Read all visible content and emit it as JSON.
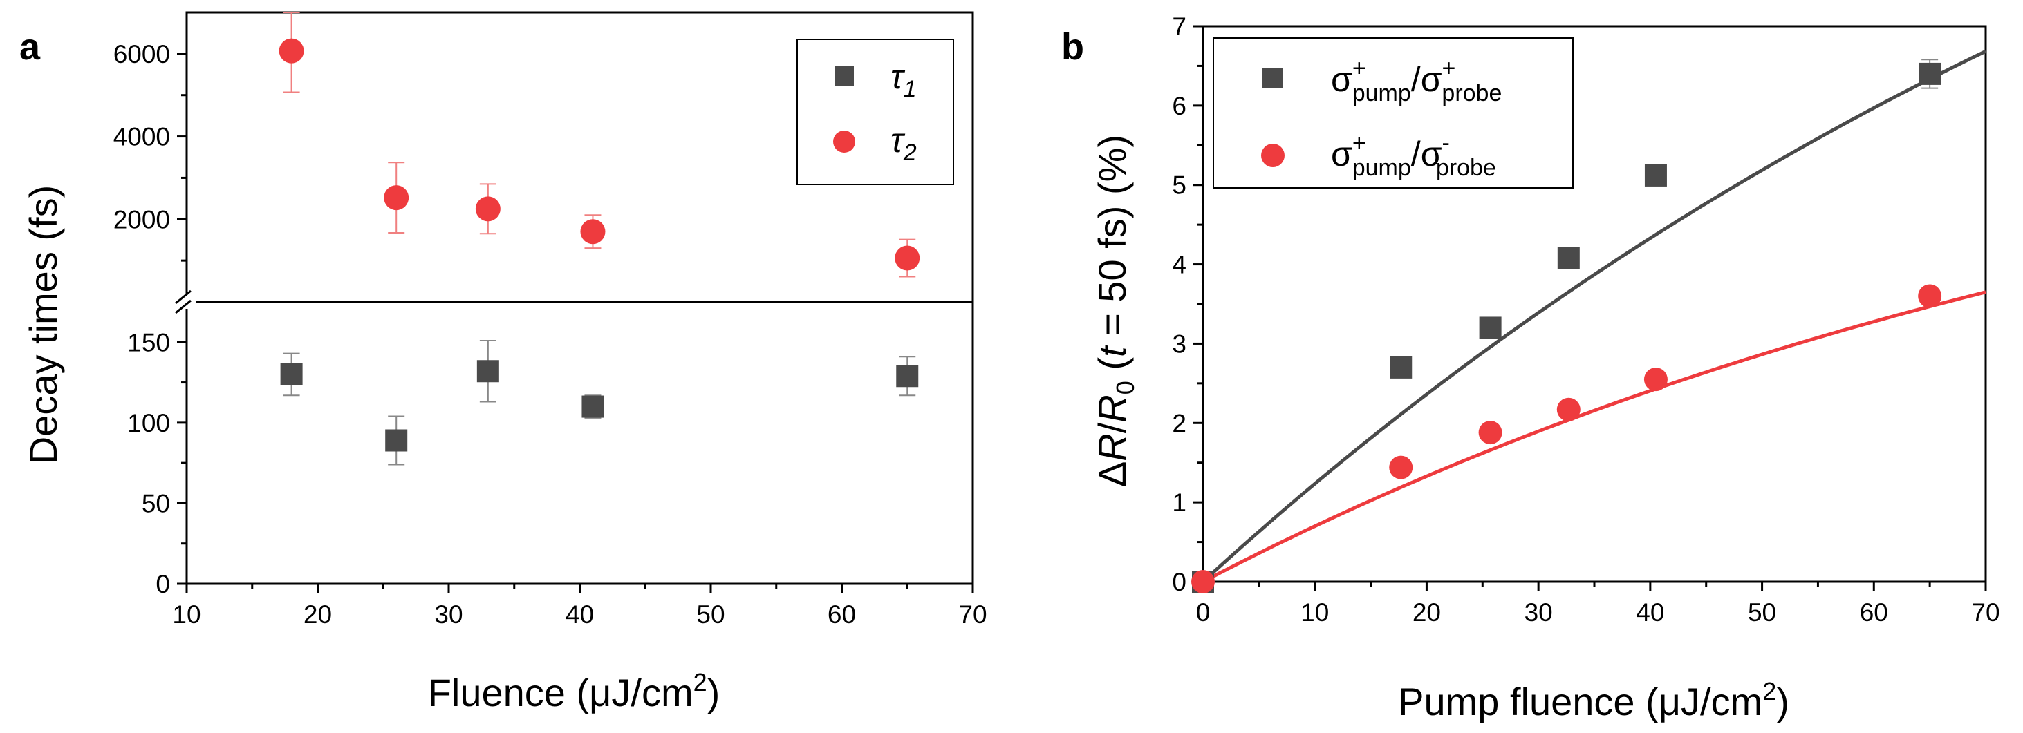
{
  "colors": {
    "series_gray": "#4a4a4a",
    "series_red": "#ee3b3e",
    "errorbar_gray": "#888888",
    "errorbar_red": "#f08080"
  },
  "panels": {
    "a": {
      "label": "a"
    },
    "b": {
      "label": "b"
    }
  },
  "chart_data": [
    {
      "panel": "a",
      "type": "scatter",
      "title": "",
      "xlabel_main": "Fluence (μJ/cm",
      "xlabel_sup": "2",
      "xlabel_close": ")",
      "ylabel": "Decay times (fs)",
      "xlim": [
        10,
        70
      ],
      "x_ticks": [
        "10",
        "20",
        "30",
        "40",
        "50",
        "60",
        "70"
      ],
      "broken_y_axis": true,
      "ylim_lower": [
        0,
        175
      ],
      "ylim_upper": [
        0,
        7000
      ],
      "y_ticks_lower": [
        "0",
        "50",
        "100",
        "150"
      ],
      "y_ticks_upper": [
        "2000",
        "4000",
        "6000"
      ],
      "legend_position": "top-right",
      "series": [
        {
          "name": "τ1",
          "legend_base": "τ",
          "legend_sub": "1",
          "marker": "square",
          "color": "#4a4a4a",
          "segment": "lower",
          "x": [
            18,
            26,
            33,
            41,
            65
          ],
          "y": [
            130,
            89,
            132,
            110,
            129
          ],
          "yerr": [
            13,
            15,
            19,
            7,
            12
          ]
        },
        {
          "name": "τ2",
          "legend_base": "τ",
          "legend_sub": "2",
          "marker": "circle",
          "color": "#ee3b3e",
          "segment": "upper",
          "x": [
            18,
            26,
            33,
            41,
            65
          ],
          "y": [
            6070,
            2520,
            2250,
            1700,
            1060
          ],
          "yerr": [
            1000,
            850,
            600,
            400,
            450
          ]
        }
      ]
    },
    {
      "panel": "b",
      "type": "scatter",
      "title": "",
      "xlabel_main": "Pump fluence (μJ/cm",
      "xlabel_sup": "2",
      "xlabel_close": ")",
      "ylabel_parts": [
        "Δ",
        "R",
        "/",
        "R",
        "0",
        " (",
        "t",
        " = 50 fs) (%)"
      ],
      "xlim": [
        0,
        70
      ],
      "ylim": [
        0,
        7
      ],
      "x_ticks": [
        "0",
        "10",
        "20",
        "30",
        "40",
        "50",
        "60",
        "70"
      ],
      "y_ticks": [
        "0",
        "1",
        "2",
        "3",
        "4",
        "5",
        "6",
        "7"
      ],
      "legend_position": "top-left",
      "series": [
        {
          "name": "σ+pump/σ+probe",
          "legend_parts": {
            "sigma": "σ",
            "sup1": "+",
            "sub1": "pump",
            "slash": "/",
            "sup2": "+",
            "sub2": "probe"
          },
          "marker": "square",
          "color": "#4a4a4a",
          "x": [
            0,
            17.7,
            25.7,
            32.7,
            40.5,
            65
          ],
          "y": [
            0,
            2.7,
            3.2,
            4.08,
            5.12,
            6.4
          ],
          "yerr": [
            0,
            0.05,
            0.05,
            0.05,
            0.08,
            0.18
          ],
          "fit": {
            "type": "saturation",
            "A": 14.2,
            "F0": 110
          }
        },
        {
          "name": "σ+pump/σ-probe",
          "legend_parts": {
            "sigma": "σ",
            "sup1": "+",
            "sub1": "pump",
            "slash": "/",
            "sup2": "-",
            "sub2": "probe"
          },
          "marker": "circle",
          "color": "#ee3b3e",
          "x": [
            0,
            17.7,
            25.7,
            32.7,
            40.5,
            65
          ],
          "y": [
            0,
            1.44,
            1.88,
            2.17,
            2.55,
            3.6
          ],
          "yerr": [
            0,
            0.04,
            0.04,
            0.04,
            0.05,
            0.06
          ],
          "fit": {
            "type": "saturation",
            "A": 7.0,
            "F0": 95
          }
        }
      ]
    }
  ]
}
